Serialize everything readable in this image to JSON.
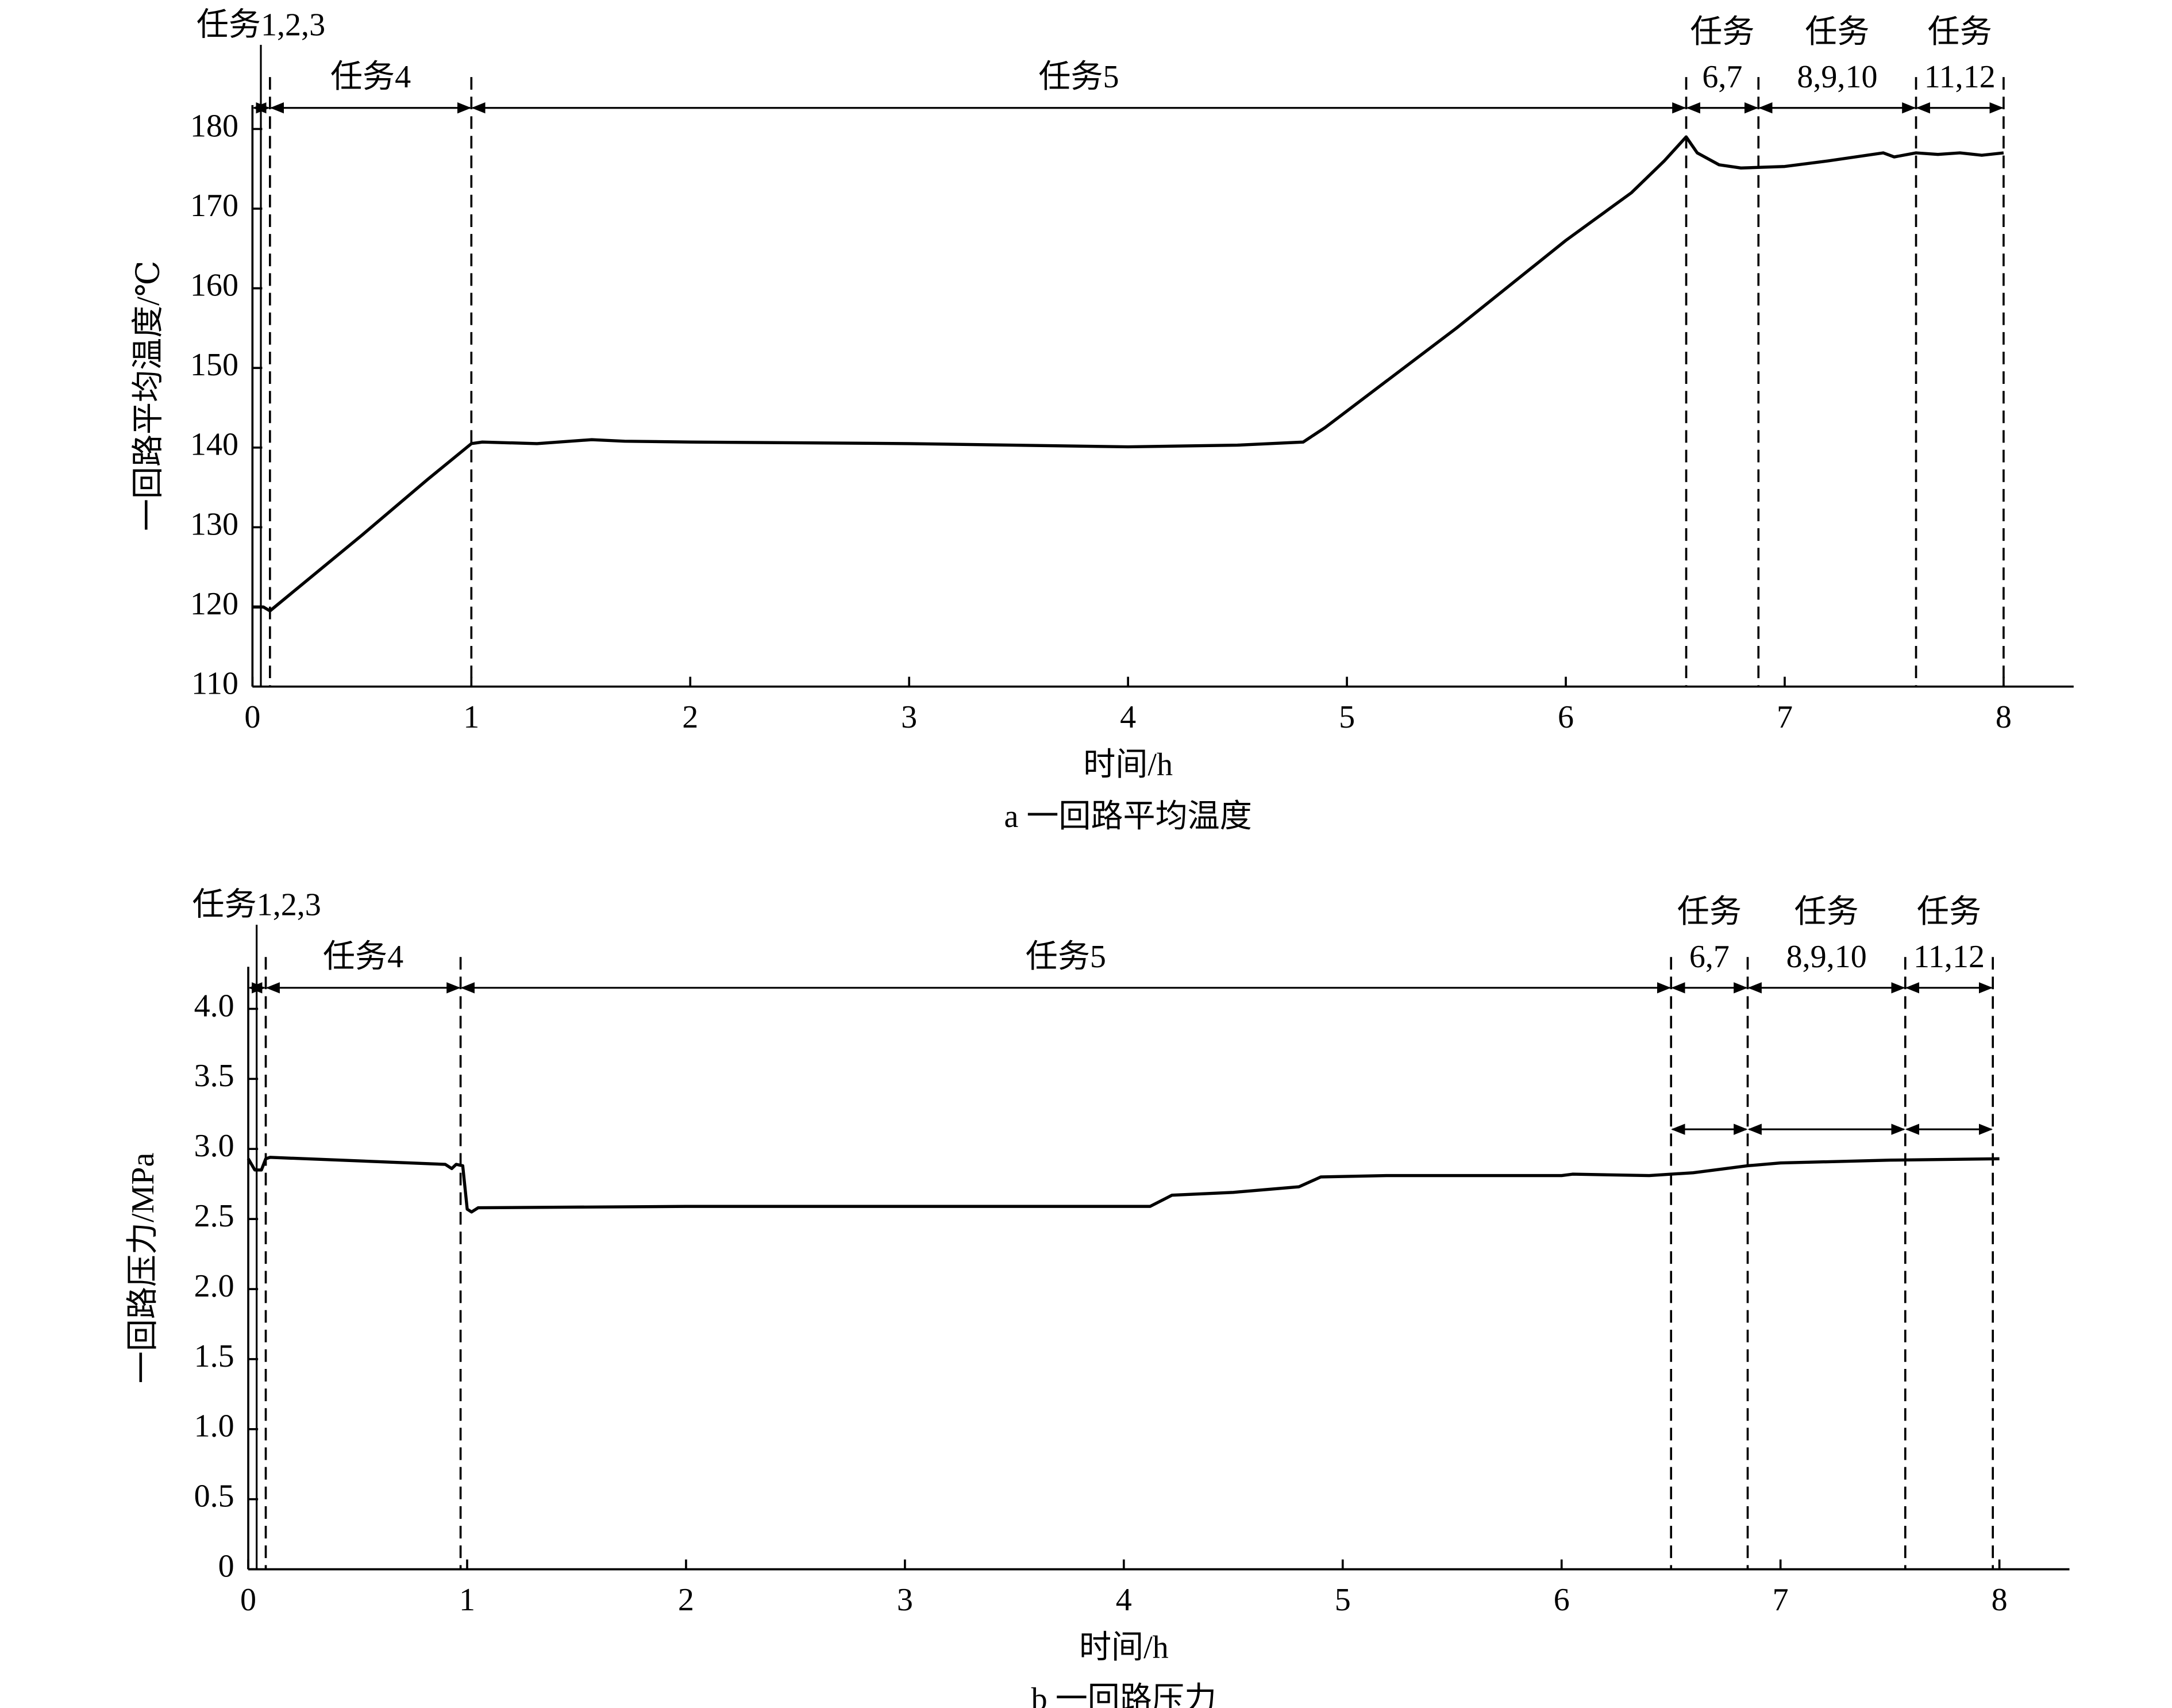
{
  "chart_data": [
    {
      "type": "line",
      "caption": "a 一回路平均温度",
      "x_label": "时间/h",
      "y_label": "一回路平均温度/℃",
      "xlim": [
        0,
        8.32
      ],
      "ylim": [
        110,
        183
      ],
      "xticks": [
        0,
        1,
        2,
        3,
        4,
        5,
        6,
        7,
        8
      ],
      "yticks": [
        110,
        120,
        130,
        140,
        150,
        160,
        170,
        180
      ],
      "series": [
        {
          "color": "#000000",
          "x": [
            0,
            0.05,
            0.08,
            0.5,
            0.8,
            1.0,
            1.05,
            1.3,
            1.55,
            1.7,
            2,
            3,
            4,
            4.5,
            4.8,
            4.9,
            5.5,
            6,
            6.3,
            6.45,
            6.55,
            6.6,
            6.7,
            6.8,
            7,
            7.2,
            7.45,
            7.5,
            7.6,
            7.7,
            7.8,
            7.9,
            8
          ],
          "values": [
            120,
            120,
            119.5,
            129,
            136,
            140.5,
            140.7,
            140.5,
            141,
            140.8,
            140.7,
            140.5,
            140.1,
            140.3,
            140.7,
            142.5,
            155,
            166,
            172,
            176,
            179,
            177,
            175.5,
            175.1,
            175.3,
            176,
            177,
            176.5,
            177,
            176.8,
            177,
            176.7,
            177
          ]
        }
      ],
      "phases": [
        {
          "lines": [
            "任务1,2,3"
          ],
          "start": 0,
          "end": 0.08
        },
        {
          "lines": [
            "任务4"
          ],
          "start": 0.08,
          "end": 1.0
        },
        {
          "lines": [
            "任务5"
          ],
          "start": 1.0,
          "end": 6.55
        },
        {
          "lines": [
            "任务",
            "6,7"
          ],
          "start": 6.55,
          "end": 6.88
        },
        {
          "lines": [
            "任务",
            "8,9,10"
          ],
          "start": 6.88,
          "end": 7.6
        },
        {
          "lines": [
            "任务",
            "11,12"
          ],
          "start": 7.6,
          "end": 8.0
        }
      ]
    },
    {
      "type": "line",
      "caption": "b 一回路压力",
      "x_label": "时间/h",
      "y_label": "一回路压力/MPa",
      "xlim": [
        0,
        8.32
      ],
      "ylim": [
        0,
        4.3
      ],
      "xticks": [
        0,
        1,
        2,
        3,
        4,
        5,
        6,
        7,
        8
      ],
      "yticks": [
        0,
        0.5,
        {
          "value": 1,
          "label": "1.0"
        },
        1.5,
        {
          "value": 2,
          "label": "2.0"
        },
        2.5,
        {
          "value": 3,
          "label": "3.0"
        },
        3.5,
        {
          "value": 4,
          "label": "4.0"
        }
      ],
      "series": [
        {
          "color": "#000000",
          "x": [
            0,
            0.03,
            0.06,
            0.08,
            0.1,
            0.9,
            0.93,
            0.95,
            0.98,
            1.0,
            1.02,
            1.05,
            2,
            3,
            4,
            4.12,
            4.22,
            4.5,
            4.8,
            4.9,
            5.2,
            6,
            6.05,
            6.4,
            6.6,
            6.85,
            7,
            7.5,
            8
          ],
          "values": [
            2.93,
            2.85,
            2.85,
            2.93,
            2.94,
            2.89,
            2.86,
            2.89,
            2.88,
            2.57,
            2.55,
            2.58,
            2.59,
            2.59,
            2.59,
            2.59,
            2.67,
            2.69,
            2.73,
            2.8,
            2.81,
            2.81,
            2.82,
            2.81,
            2.83,
            2.88,
            2.9,
            2.92,
            2.93
          ]
        }
      ],
      "phases": [
        {
          "lines": [
            "任务1,2,3"
          ],
          "start": 0,
          "end": 0.08
        },
        {
          "lines": [
            "任务4"
          ],
          "start": 0.08,
          "end": 0.97
        },
        {
          "lines": [
            "任务5"
          ],
          "start": 0.97,
          "end": 6.5
        },
        {
          "lines": [
            "任务",
            "6,7"
          ],
          "start": 6.5,
          "end": 6.85
        },
        {
          "lines": [
            "任务",
            "8,9,10"
          ],
          "start": 6.85,
          "end": 7.57
        },
        {
          "lines": [
            "任务",
            "11,12"
          ],
          "start": 7.57,
          "end": 7.97
        }
      ]
    }
  ]
}
